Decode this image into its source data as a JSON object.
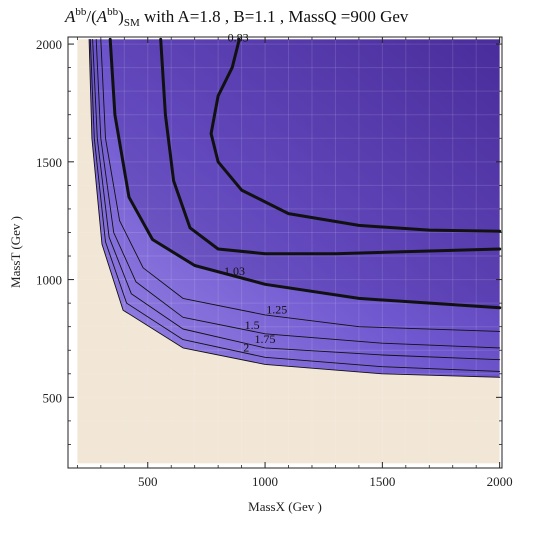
{
  "title": {
    "A1": "A",
    "sup1": "bb",
    "slash": "/(",
    "A2": "A",
    "sup2": "bb",
    "close": ")",
    "sub": "SM",
    "rest": "  with   A=1.8 , B=1.1 , MassQ =900  Gev"
  },
  "chart_data": {
    "type": "contour",
    "xlabel": "MassX (Gev )",
    "ylabel": "MassT (Gev )",
    "xlim": [
      160,
      2010
    ],
    "ylim": [
      200,
      2030
    ],
    "data_domain": {
      "x": [
        200,
        2000
      ],
      "y": [
        220,
        2020
      ]
    },
    "xticks": [
      500,
      1000,
      1500,
      2000
    ],
    "yticks": [
      500,
      1000,
      1500,
      2000
    ],
    "xtick_labels": [
      "500",
      "1000",
      "1500",
      "2000"
    ],
    "ytick_labels": [
      "500",
      "1000",
      "1500",
      "2000"
    ],
    "colors": {
      "background": "#f2e6d6",
      "fill_low": "#9a88e6",
      "fill_mid": "#7a63d6",
      "fill_high": "#4a2d9c",
      "line": "#111111"
    },
    "contours": [
      {
        "label": "0.83",
        "bold": true,
        "points": [
          [
            555,
            2020
          ],
          [
            575,
            1700
          ],
          [
            610,
            1420
          ],
          [
            680,
            1220
          ],
          [
            800,
            1130
          ],
          [
            1000,
            1110
          ],
          [
            1300,
            1110
          ],
          [
            2000,
            1130
          ]
        ]
      },
      {
        "label": "1.03",
        "bold": true,
        "points": [
          [
            340,
            2020
          ],
          [
            360,
            1700
          ],
          [
            420,
            1350
          ],
          [
            520,
            1170
          ],
          [
            700,
            1060
          ],
          [
            1000,
            980
          ],
          [
            1400,
            920
          ],
          [
            2000,
            880
          ]
        ]
      },
      {
        "label": "1.25",
        "bold": false,
        "points": [
          [
            300,
            2020
          ],
          [
            320,
            1600
          ],
          [
            380,
            1250
          ],
          [
            480,
            1050
          ],
          [
            650,
            920
          ],
          [
            1000,
            850
          ],
          [
            1400,
            800
          ],
          [
            2000,
            780
          ]
        ]
      },
      {
        "label": "1.5",
        "bold": false,
        "points": [
          [
            280,
            2020
          ],
          [
            300,
            1600
          ],
          [
            355,
            1200
          ],
          [
            450,
            990
          ],
          [
            650,
            840
          ],
          [
            1000,
            770
          ],
          [
            1500,
            730
          ],
          [
            2000,
            710
          ]
        ]
      },
      {
        "label": "1.75",
        "bold": false,
        "points": [
          [
            265,
            2020
          ],
          [
            285,
            1600
          ],
          [
            335,
            1180
          ],
          [
            430,
            940
          ],
          [
            650,
            790
          ],
          [
            1000,
            710
          ],
          [
            1500,
            680
          ],
          [
            2000,
            660
          ]
        ]
      },
      {
        "label": "2",
        "bold": false,
        "points": [
          [
            255,
            2020
          ],
          [
            272,
            1600
          ],
          [
            320,
            1160
          ],
          [
            410,
            900
          ],
          [
            650,
            745
          ],
          [
            1000,
            670
          ],
          [
            1500,
            630
          ],
          [
            2000,
            610
          ]
        ]
      },
      {
        "label": "",
        "bold": false,
        "points": [
          [
            250,
            2020
          ],
          [
            262,
            1600
          ],
          [
            305,
            1150
          ],
          [
            395,
            870
          ],
          [
            650,
            710
          ],
          [
            1000,
            640
          ],
          [
            1500,
            600
          ],
          [
            2000,
            585
          ]
        ]
      },
      {
        "label": "0.83 right",
        "bold": true,
        "points": [
          [
            890,
            2020
          ],
          [
            860,
            1900
          ],
          [
            800,
            1780
          ],
          [
            770,
            1620
          ],
          [
            800,
            1500
          ],
          [
            900,
            1380
          ],
          [
            1100,
            1280
          ],
          [
            1400,
            1230
          ],
          [
            1700,
            1210
          ],
          [
            2000,
            1205
          ]
        ]
      }
    ],
    "contour_labels": [
      {
        "text": "0.83",
        "x": 885,
        "y": 2010
      },
      {
        "text": "1.03",
        "x": 870,
        "y": 1020
      },
      {
        "text": "1.25",
        "x": 1050,
        "y": 855
      },
      {
        "text": "1.5",
        "x": 945,
        "y": 790
      },
      {
        "text": "1.75",
        "x": 1000,
        "y": 730
      },
      {
        "text": "2",
        "x": 920,
        "y": 695
      }
    ]
  }
}
